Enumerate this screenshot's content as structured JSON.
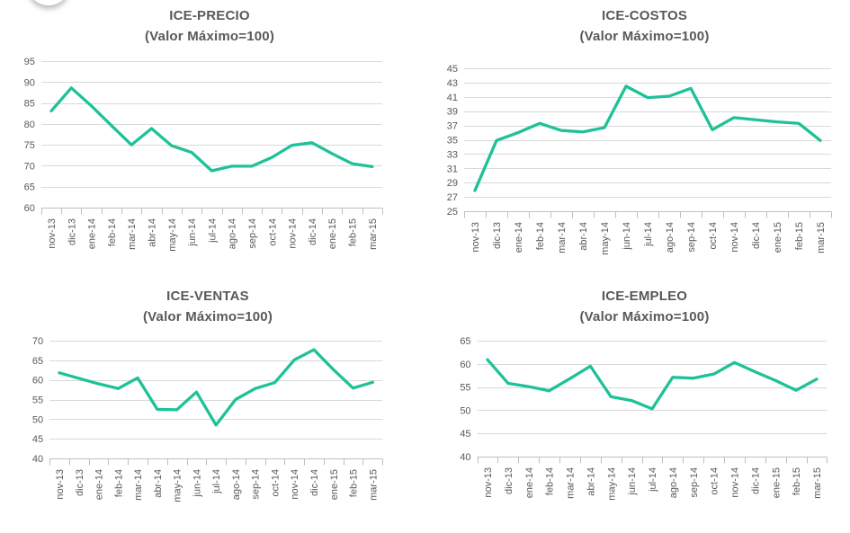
{
  "colors": {
    "line": "#1EC198",
    "gridline": "#D9D9D9",
    "axis_line": "#BFBFBF",
    "axis_text": "#595959",
    "title_text": "#595959",
    "background": "#FFFFFF"
  },
  "chart_data": [
    {
      "type": "line",
      "title": "ICE-PRECIO",
      "subtitle": "(Valor Máximo=100)",
      "categories": [
        "nov-13",
        "dic-13",
        "ene-14",
        "feb-14",
        "mar-14",
        "abr-14",
        "may-14",
        "jun-14",
        "jul-14",
        "ago-14",
        "sep-14",
        "oct-14",
        "nov-14",
        "dic-14",
        "ene-15",
        "feb-15",
        "mar-15"
      ],
      "values": [
        83.1,
        88.6,
        84.3,
        79.6,
        75.0,
        78.9,
        74.8,
        73.2,
        68.8,
        69.9,
        69.9,
        72.0,
        74.9,
        75.5,
        72.9,
        70.5,
        69.8
      ],
      "ylim": [
        60,
        95
      ],
      "yticks": [
        95,
        90,
        85,
        80,
        75,
        70,
        65,
        60
      ],
      "line_color": "#1EC198",
      "grid": true,
      "legend": "none"
    },
    {
      "type": "line",
      "title": "ICE-COSTOS",
      "subtitle": "(Valor Máximo=100)",
      "categories": [
        "nov-13",
        "dic-13",
        "ene-14",
        "feb-14",
        "mar-14",
        "abr-14",
        "may-14",
        "jun-14",
        "jul-14",
        "ago-14",
        "sep-14",
        "oct-14",
        "nov-14",
        "dic-14",
        "ene-15",
        "feb-15",
        "mar-15"
      ],
      "values": [
        27.9,
        34.9,
        36.0,
        37.3,
        36.3,
        36.1,
        36.7,
        42.5,
        40.9,
        41.1,
        42.2,
        36.4,
        38.1,
        37.8,
        37.5,
        37.3,
        34.9
      ],
      "ylim": [
        25,
        45
      ],
      "yticks": [
        45,
        43,
        41,
        39,
        37,
        35,
        33,
        31,
        29,
        27,
        25
      ],
      "line_color": "#1EC198",
      "grid": true,
      "legend": "none"
    },
    {
      "type": "line",
      "title": "ICE-VENTAS",
      "subtitle": "(Valor Máximo=100)",
      "categories": [
        "nov-13",
        "dic-13",
        "ene-14",
        "feb-14",
        "mar-14",
        "abr-14",
        "may-14",
        "jun-14",
        "jul-14",
        "ago-14",
        "sep-14",
        "oct-14",
        "nov-14",
        "dic-14",
        "ene-15",
        "feb-15",
        "mar-15"
      ],
      "values": [
        61.8,
        60.4,
        59.0,
        57.8,
        60.5,
        52.5,
        52.4,
        56.9,
        48.5,
        55.0,
        57.8,
        59.3,
        65.1,
        67.7,
        62.6,
        57.9,
        59.4
      ],
      "ylim": [
        40,
        70
      ],
      "yticks": [
        70,
        65,
        60,
        55,
        50,
        45,
        40
      ],
      "line_color": "#1EC198",
      "grid": true,
      "legend": "none"
    },
    {
      "type": "line",
      "title": "ICE-EMPLEO",
      "subtitle": "(Valor Máximo=100)",
      "categories": [
        "nov-13",
        "dic-13",
        "ene-14",
        "feb-14",
        "mar-14",
        "abr-14",
        "may-14",
        "jun-14",
        "jul-14",
        "ago-14",
        "sep-14",
        "oct-14",
        "nov-14",
        "dic-14",
        "ene-15",
        "feb-15",
        "mar-15"
      ],
      "values": [
        60.9,
        55.8,
        55.1,
        54.2,
        56.8,
        59.5,
        52.9,
        52.1,
        50.3,
        57.1,
        56.9,
        57.8,
        60.3,
        58.3,
        56.4,
        54.3,
        56.7
      ],
      "ylim": [
        40,
        65
      ],
      "yticks": [
        65,
        60,
        55,
        50,
        45,
        40
      ],
      "line_color": "#1EC198",
      "grid": true,
      "legend": "none"
    }
  ]
}
